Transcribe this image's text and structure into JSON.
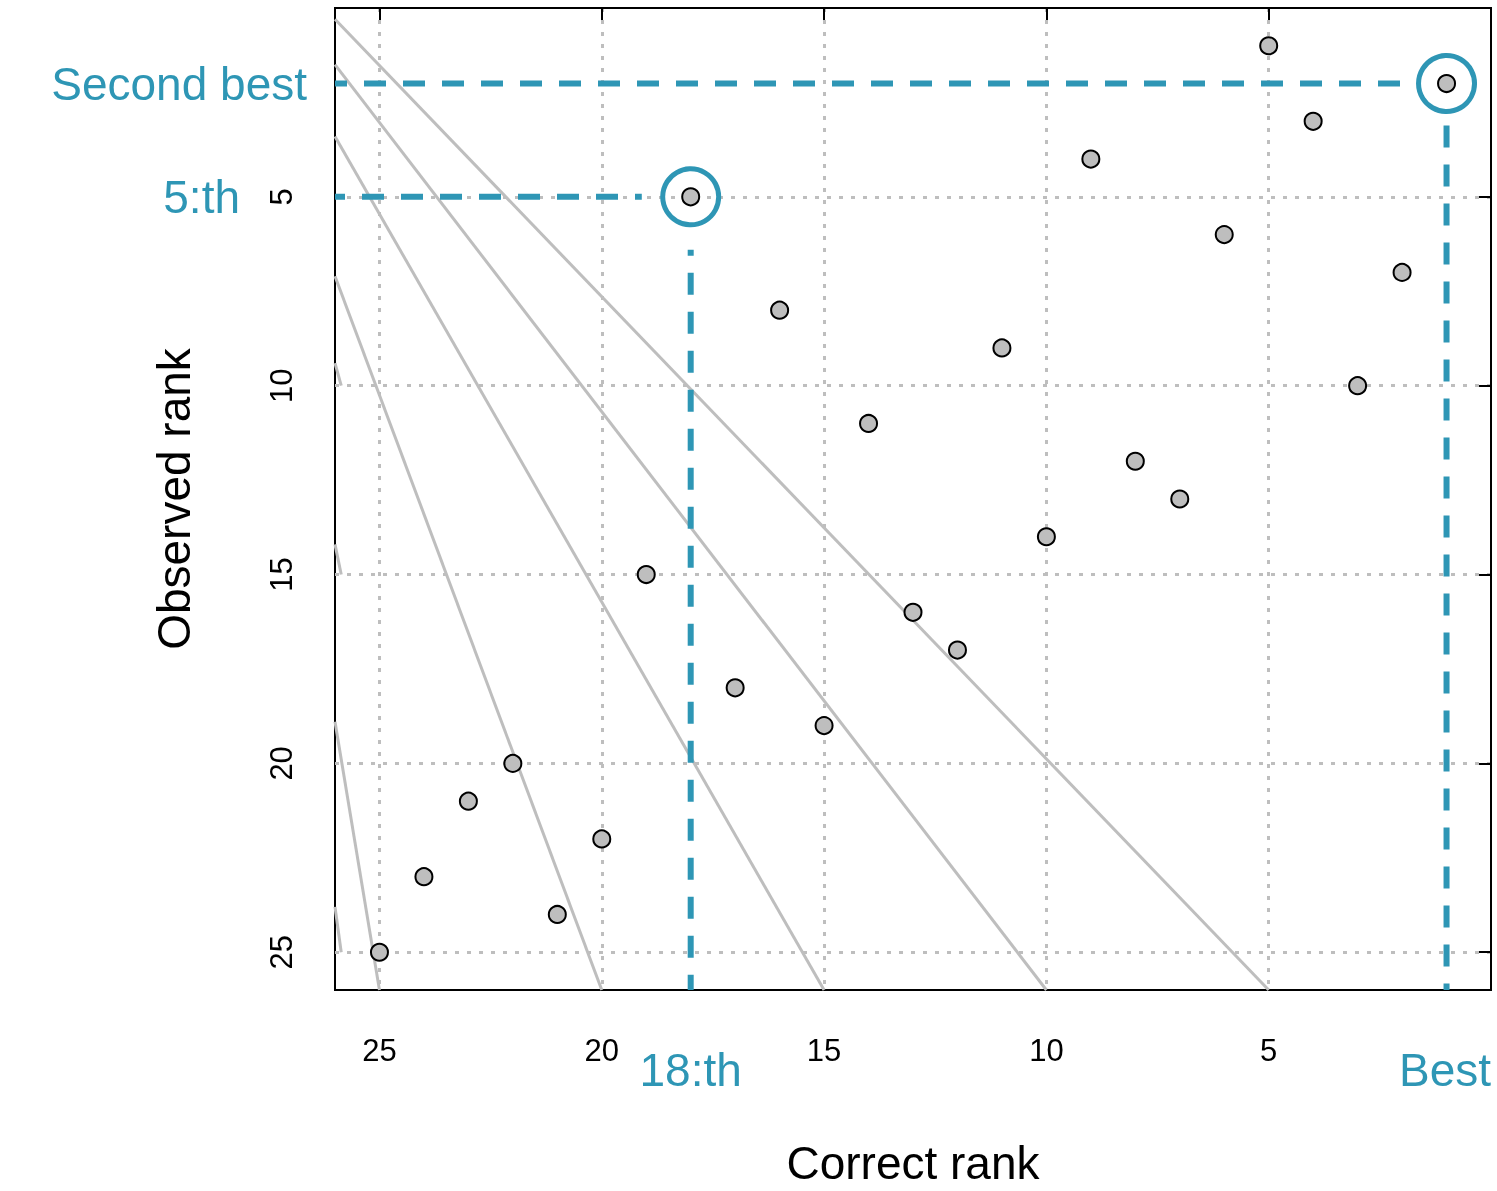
{
  "chart_data": {
    "type": "scatter",
    "xlabel": "Correct rank",
    "ylabel": "Observed rank",
    "xlim": [
      26,
      0
    ],
    "ylim": [
      26,
      0
    ],
    "xticks": [
      25,
      20,
      15,
      10,
      5
    ],
    "yticks": [
      5,
      10,
      15,
      20,
      25
    ],
    "grid": true,
    "series": [
      {
        "type": "line",
        "color": "#bebebe",
        "x": [
          26,
          5
        ],
        "values": [
          0.3,
          26
        ]
      },
      {
        "type": "line",
        "color": "#bebebe",
        "x": [
          26,
          10
        ],
        "values": [
          1.5,
          26
        ]
      },
      {
        "type": "line",
        "color": "#bebebe",
        "x": [
          26,
          15
        ],
        "values": [
          3.4,
          26
        ]
      },
      {
        "type": "line",
        "color": "#bebebe",
        "x": [
          26,
          20
        ],
        "values": [
          7.1,
          26
        ]
      },
      {
        "type": "line",
        "color": "#bebebe",
        "x": [
          26,
          25
        ],
        "values": [
          18.9,
          26
        ]
      },
      {
        "type": "line",
        "color": "#bebebe",
        "x": [
          26,
          25.86
        ],
        "values": [
          9.4,
          10
        ]
      },
      {
        "type": "line",
        "color": "#bebebe",
        "x": [
          26,
          25.86
        ],
        "values": [
          14.2,
          15
        ]
      },
      {
        "type": "line",
        "color": "#bebebe",
        "x": [
          26,
          25.86
        ],
        "values": [
          23.8,
          25
        ]
      },
      {
        "type": "line",
        "name": "Second best",
        "color": "#2e96b5",
        "line_style": "dashed",
        "x": [
          26,
          1.6
        ],
        "values": [
          2,
          2
        ]
      },
      {
        "type": "line",
        "name": "Best",
        "color": "#2e96b5",
        "line_style": "dashed",
        "x": [
          1,
          1
        ],
        "values": [
          2.9,
          26
        ]
      },
      {
        "type": "line",
        "name": "5:th",
        "color": "#2e96b5",
        "line_style": "dashed",
        "x": [
          26,
          19.1
        ],
        "values": [
          5,
          5
        ]
      },
      {
        "type": "line",
        "name": "18:th",
        "color": "#2e96b5",
        "line_style": "dashed",
        "x": [
          18,
          18
        ],
        "values": [
          6.4,
          26
        ]
      },
      {
        "type": "bubble",
        "color": "#2e96b5",
        "x": [
          1,
          18
        ],
        "values": [
          2,
          5
        ],
        "sizes": [
          1,
          1
        ]
      },
      {
        "color": "#bebebe",
        "marker": "circle",
        "x": [
          5,
          1,
          4,
          9,
          18,
          6,
          2,
          16,
          11,
          3,
          14,
          8,
          7,
          10,
          19,
          13,
          12,
          17,
          15,
          22,
          23,
          20,
          24,
          21,
          25
        ],
        "values": [
          1,
          2,
          3,
          4,
          5,
          6,
          7,
          8,
          9,
          10,
          11,
          12,
          13,
          14,
          15,
          16,
          17,
          18,
          19,
          20,
          21,
          22,
          23,
          24,
          25
        ]
      }
    ]
  }
}
